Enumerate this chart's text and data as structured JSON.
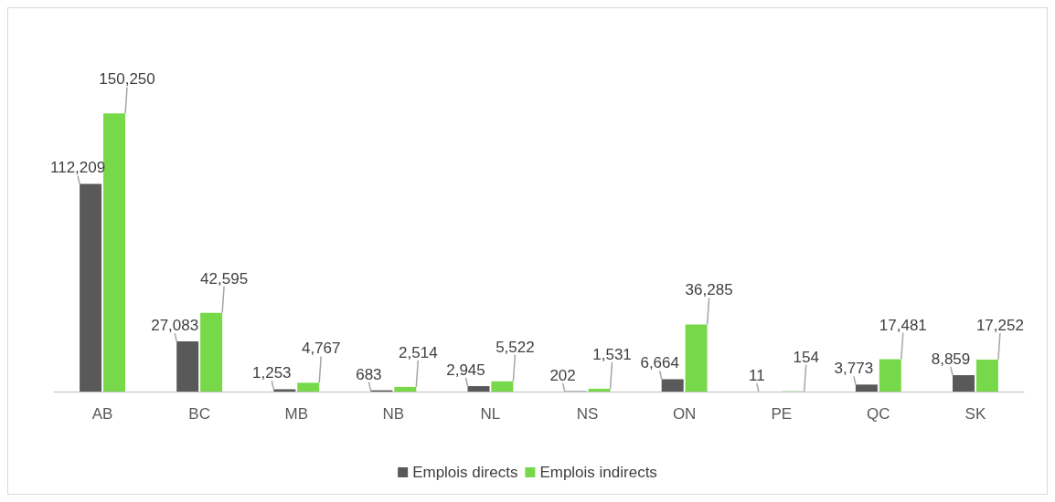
{
  "chart_data": {
    "type": "bar",
    "categories": [
      "AB",
      "BC",
      "MB",
      "NB",
      "NL",
      "NS",
      "ON",
      "PE",
      "QC",
      "SK"
    ],
    "series": [
      {
        "name": "Emplois directs",
        "color": "#595959",
        "values": [
          112209,
          27083,
          1253,
          683,
          2945,
          202,
          6664,
          11,
          3773,
          8859
        ],
        "value_labels": [
          "112,209",
          "27,083",
          "1,253",
          "683",
          "2,945",
          "202",
          "6,664",
          "11",
          "3,773",
          "8,859"
        ]
      },
      {
        "name": "Emplois indirects",
        "color": "#77d94a",
        "values": [
          150250,
          42595,
          4767,
          2514,
          5522,
          1531,
          36285,
          154,
          17481,
          17252
        ],
        "value_labels": [
          "150,250",
          "42,595",
          "4,767",
          "2,514",
          "5,522",
          "1,531",
          "36,285",
          "154",
          "17,481",
          "17,252"
        ]
      }
    ],
    "legend": "bottom",
    "grid": false
  }
}
